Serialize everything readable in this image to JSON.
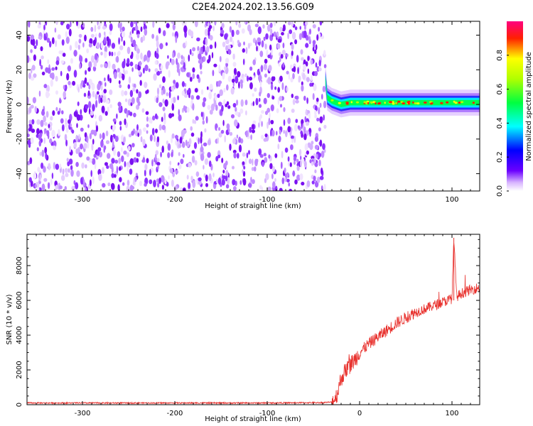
{
  "title": "C2E4.2024.202.13.56.G09",
  "chart_data": [
    {
      "type": "heatmap",
      "xlabel": "Height of straight line (km)",
      "ylabel": "Frequency (Hz)",
      "xlim": [
        -360,
        130
      ],
      "ylim": [
        -50,
        48
      ],
      "xticks": [
        -300,
        -200,
        -100,
        0,
        100
      ],
      "yticks": [
        -40,
        -20,
        0,
        20,
        40
      ],
      "noise_region_x": [
        -360,
        -37
      ],
      "signal_ridge": {
        "x": [
          -37,
          -35,
          -30,
          -25,
          -20,
          -10,
          0,
          20,
          40,
          60,
          80,
          100,
          130
        ],
        "frequency_hz": [
          15,
          4,
          2,
          1,
          0,
          1,
          1,
          1,
          1,
          1,
          1,
          1,
          1
        ]
      },
      "colorbar": {
        "label": "Normalized spectral amplitude",
        "range": [
          0,
          1
        ],
        "ticks": [
          "0.0",
          "0.2",
          "0.4",
          "0.6",
          "0.8"
        ],
        "colors": [
          "#ffffff",
          "#6b00ff",
          "#0000ff",
          "#00ffff",
          "#00ff00",
          "#ffff00",
          "#ff0000",
          "#ff0080"
        ]
      }
    },
    {
      "type": "line",
      "xlabel": "Height of straight line (km)",
      "ylabel": "SNR (10 * v/v)",
      "xlim": [
        -360,
        130
      ],
      "ylim": [
        0,
        9800
      ],
      "xticks": [
        -300,
        -200,
        -100,
        0,
        100
      ],
      "yticks": [
        0,
        2000,
        4000,
        6000,
        8000
      ],
      "color": "#e8302c",
      "series": [
        {
          "x": [
            -360,
            -300,
            -200,
            -100,
            -40,
            -30,
            -25,
            -20,
            -15,
            -10,
            -5,
            0,
            10,
            20,
            30,
            40,
            50,
            60,
            70,
            80,
            90,
            100,
            102,
            105,
            110,
            120,
            130
          ],
          "y": [
            100,
            100,
            100,
            100,
            120,
            150,
            500,
            1500,
            2000,
            2300,
            2600,
            3000,
            3500,
            3900,
            4300,
            4700,
            5000,
            5300,
            5500,
            5700,
            5900,
            6100,
            9600,
            6200,
            6400,
            6600,
            6750
          ]
        }
      ]
    }
  ]
}
